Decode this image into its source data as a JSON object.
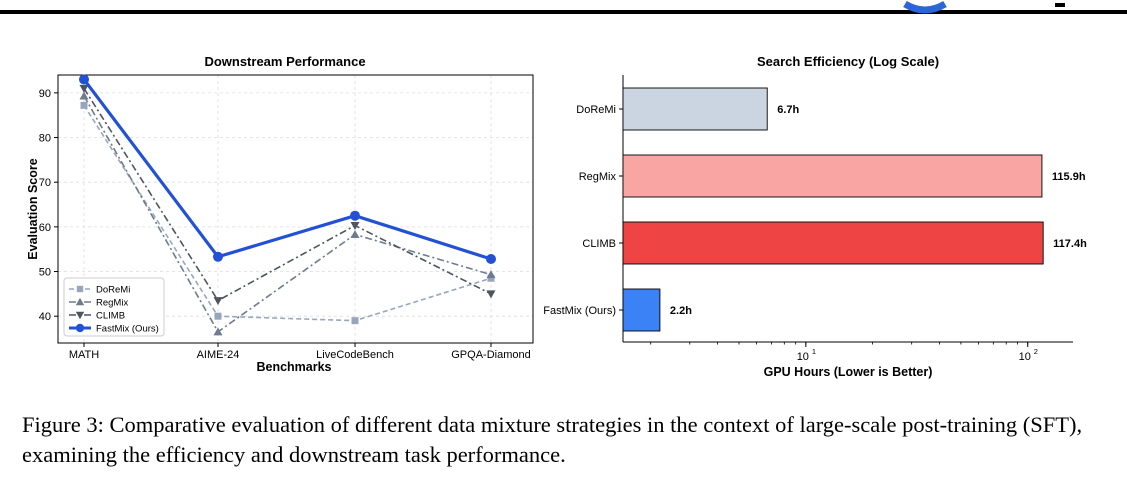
{
  "caption": {
    "label": "Figure 3:",
    "text": "Comparative evaluation of different data mixture strategies in the context of large-scale post-training (SFT), examining the efficiency and downstream task performance."
  },
  "chart_data": [
    {
      "type": "line",
      "title": "Downstream Performance",
      "xlabel": "Benchmarks",
      "ylabel": "Evaluation Score",
      "categories": [
        "MATH",
        "AIME-24",
        "LiveCodeBench",
        "GPQA-Diamond"
      ],
      "ylim": [
        34,
        94
      ],
      "yticks": [
        40,
        50,
        60,
        70,
        80,
        90
      ],
      "grid": true,
      "legend_position": "bottom-left",
      "series": [
        {
          "name": "DoReMi",
          "values": [
            87.2,
            40.0,
            39.0,
            48.5
          ],
          "color": "#98a6bd",
          "marker": "square",
          "linestyle": "dashed"
        },
        {
          "name": "RegMix",
          "values": [
            89.3,
            36.5,
            58.3,
            49.3
          ],
          "color": "#6f7b8e",
          "marker": "triangle-up",
          "linestyle": "dashdot"
        },
        {
          "name": "CLIMB",
          "values": [
            91.0,
            43.5,
            60.3,
            45.0
          ],
          "color": "#4d5562",
          "marker": "triangle-down",
          "linestyle": "dashdot"
        },
        {
          "name": "FastMix (Ours)",
          "values": [
            93.0,
            53.3,
            62.5,
            52.8
          ],
          "color": "#2351d6",
          "marker": "circle",
          "linestyle": "solid"
        }
      ]
    },
    {
      "type": "bar",
      "orientation": "horizontal",
      "title": "Search Efficiency (Log Scale)",
      "xlabel": "GPU Hours (Lower is Better)",
      "xscale": "log",
      "xlim": [
        1.5,
        160
      ],
      "xticks": [
        {
          "value": 10,
          "base": "10",
          "exp": "1"
        },
        {
          "value": 100,
          "base": "10",
          "exp": "2"
        }
      ],
      "categories": [
        "DoReMi",
        "RegMix",
        "CLIMB",
        "FastMix (Ours)"
      ],
      "values": [
        6.7,
        115.9,
        117.4,
        2.2
      ],
      "value_labels": [
        "6.7h",
        "115.9h",
        "117.4h",
        "2.2h"
      ],
      "colors": [
        "#cbd5e1",
        "#f8a5a3",
        "#ef4444",
        "#3b82f6"
      ]
    }
  ]
}
